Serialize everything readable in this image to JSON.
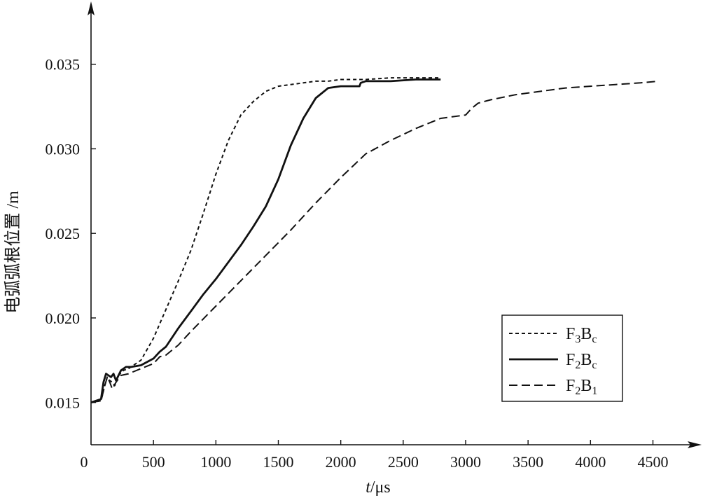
{
  "chart_data": {
    "type": "line",
    "title": "",
    "xlabel_italic": "t",
    "xlabel_unit": "/μs",
    "ylabel": "电弧弧根位置 /m",
    "xlim": [
      0,
      4800
    ],
    "ylim": [
      0.0125,
      0.0388
    ],
    "x_ticks": [
      0,
      500,
      1000,
      1500,
      2000,
      2500,
      3000,
      3500,
      4000,
      4500
    ],
    "x_tick_labels": [
      "0",
      "500",
      "1000",
      "1500",
      "2000",
      "2500",
      "3000",
      "3500",
      "4000",
      "4500"
    ],
    "y_ticks": [
      0.015,
      0.02,
      0.025,
      0.03,
      0.035
    ],
    "y_tick_labels": [
      "0.015",
      "0.020",
      "0.025",
      "0.030",
      "0.035"
    ],
    "grid": false,
    "legend_position": "bottom-right",
    "series": [
      {
        "name_base": "F",
        "name_sub1": "3",
        "name_mid": "B",
        "name_sub2": "c",
        "style": "short-dash",
        "x": [
          0,
          80,
          110,
          130,
          150,
          170,
          190,
          220,
          260,
          300,
          400,
          500,
          600,
          700,
          800,
          900,
          1000,
          1100,
          1200,
          1300,
          1400,
          1500,
          1600,
          1700,
          1800,
          1900,
          2000,
          2200,
          2400,
          2600,
          2800
        ],
        "y": [
          0.015,
          0.0151,
          0.016,
          0.0165,
          0.0163,
          0.0162,
          0.016,
          0.0166,
          0.0169,
          0.017,
          0.0175,
          0.0188,
          0.0205,
          0.0222,
          0.024,
          0.0262,
          0.0285,
          0.0305,
          0.032,
          0.0328,
          0.0334,
          0.0337,
          0.0338,
          0.0339,
          0.034,
          0.034,
          0.0341,
          0.0341,
          0.0342,
          0.0342,
          0.0342
        ]
      },
      {
        "name_base": "F",
        "name_sub1": "2",
        "name_mid": "B",
        "name_sub2": "c",
        "style": "solid",
        "x": [
          0,
          80,
          100,
          120,
          140,
          160,
          180,
          200,
          240,
          280,
          320,
          400,
          500,
          550,
          600,
          700,
          800,
          900,
          1000,
          1100,
          1200,
          1300,
          1400,
          1500,
          1600,
          1700,
          1800,
          1900,
          2000,
          2100,
          2150,
          2160,
          2200,
          2400,
          2600,
          2800
        ],
        "y": [
          0.015,
          0.0152,
          0.0162,
          0.0167,
          0.0166,
          0.0165,
          0.0167,
          0.0163,
          0.0169,
          0.0171,
          0.0171,
          0.0172,
          0.0176,
          0.018,
          0.0183,
          0.0194,
          0.0204,
          0.0214,
          0.0223,
          0.0233,
          0.0243,
          0.0254,
          0.0266,
          0.0282,
          0.0302,
          0.0318,
          0.033,
          0.0336,
          0.0337,
          0.0337,
          0.0337,
          0.0339,
          0.034,
          0.034,
          0.0341,
          0.0341
        ]
      },
      {
        "name_base": "F",
        "name_sub1": "2",
        "name_mid": "B",
        "name_sub2": "1",
        "style": "long-dash",
        "x": [
          0,
          80,
          110,
          130,
          150,
          170,
          200,
          240,
          300,
          400,
          500,
          550,
          600,
          700,
          800,
          1000,
          1200,
          1400,
          1600,
          1800,
          2000,
          2200,
          2400,
          2600,
          2800,
          3000,
          3050,
          3100,
          3200,
          3400,
          3600,
          3800,
          4000,
          4200,
          4400,
          4550
        ],
        "y": [
          0.015,
          0.0151,
          0.016,
          0.0165,
          0.0162,
          0.0158,
          0.0162,
          0.0166,
          0.0167,
          0.017,
          0.0173,
          0.0177,
          0.0178,
          0.0184,
          0.0192,
          0.0207,
          0.0222,
          0.0237,
          0.0252,
          0.0268,
          0.0283,
          0.0297,
          0.0305,
          0.0312,
          0.0318,
          0.032,
          0.0324,
          0.0327,
          0.0329,
          0.0332,
          0.0334,
          0.0336,
          0.0337,
          0.0338,
          0.0339,
          0.034
        ]
      }
    ]
  }
}
